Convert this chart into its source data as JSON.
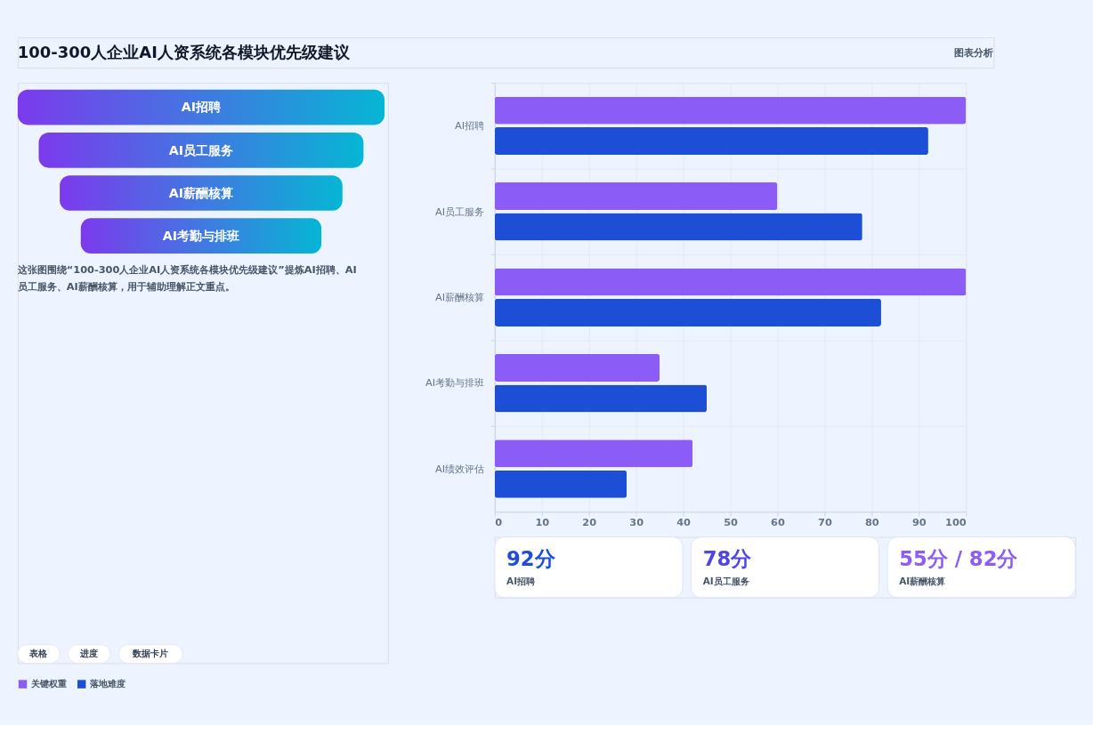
{
  "chart_data": [
    {
      "type": "other",
      "title": "100-300人企业AI人资系统各模块优先级建议",
      "annotations": [
        "图表分析",
        "AI招聘",
        "AI员工服务",
        "AI薪酬核算",
        "AI考勤与排班",
        "这张图围绕“100-300人企业AI人资系统各模块优先级建议”提炼AI招聘、AI员工服务、AI薪酬核算，用于辅助理解正文重点。",
        "表格",
        "进度",
        "数据卡片",
        "92分",
        "AI招聘",
        "78分",
        "AI员工服务",
        "55分 / 82分",
        "AI薪酬核算"
      ],
      "colors": [
        "#1d4ed8",
        "#4f46e5",
        "#8b5cf6"
      ]
    },
    {
      "type": "bar",
      "orientation": "horizontal",
      "categories": [
        "AI招聘",
        "AI员工服务",
        "AI薪酬核算",
        "AI考勤与排班",
        "AI绩效评估"
      ],
      "series": [
        {
          "name": "关键权重",
          "color": "#8b5cf6",
          "values": [
            100,
            60,
            100,
            35,
            42
          ]
        },
        {
          "name": "落地难度",
          "color": "#1c4fd6",
          "values": [
            92,
            78,
            82,
            45,
            28
          ]
        }
      ],
      "xlim": [
        0,
        100
      ],
      "xticks": [
        0,
        10,
        20,
        30,
        40,
        50,
        60,
        70,
        80,
        90,
        100
      ],
      "grid": true,
      "legend": "bottom"
    }
  ]
}
